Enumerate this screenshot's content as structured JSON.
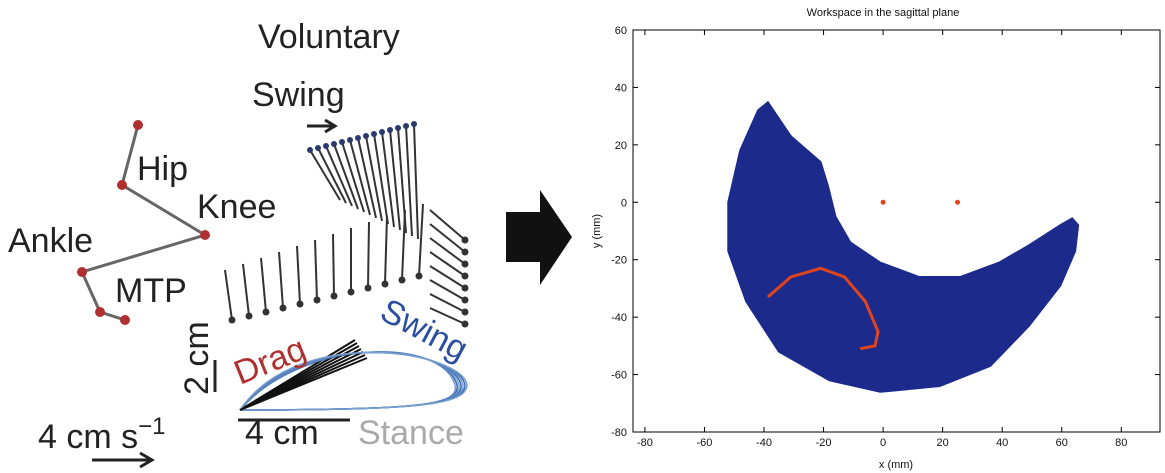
{
  "figure_labels": {
    "voluntary": "Voluntary",
    "swing_top": "Swing",
    "hip": "Hip",
    "knee": "Knee",
    "ankle": "Ankle",
    "mtp": "MTP",
    "vertical_scale": "2 cm",
    "drag": "Drag",
    "swing_bottom": "Swing",
    "horizontal_scale": "4 cm",
    "stance": "Stance",
    "speed_scale": "4 cm s",
    "speed_exponent": "−1"
  },
  "chart_data": {
    "type": "workspace",
    "title": "Workspace in the sagittal plane",
    "x_label": "x (mm)",
    "y_label": "y (mm)",
    "xlim": [
      -84,
      93
    ],
    "ylim": [
      -80,
      60
    ],
    "xticks": [
      -80,
      -60,
      -40,
      -20,
      0,
      20,
      40,
      60,
      80
    ],
    "yticks": [
      -80,
      -60,
      -40,
      -20,
      0,
      20,
      40,
      60
    ],
    "series": [
      {
        "type": "area",
        "color": "#1c2a8c",
        "x": [
          -38.7,
          -31,
          -21,
          -18.5,
          -16,
          -11,
          -1,
          12,
          26,
          39,
          49,
          59.5,
          63.5,
          65.5,
          64.5,
          59.5,
          49,
          36,
          19,
          -1,
          -18,
          -35,
          -46,
          -52,
          -52,
          -48,
          -42
        ],
        "y": [
          34.8,
          23,
          14,
          5.6,
          -5,
          -14,
          -21,
          -26,
          -26,
          -21,
          -15,
          -8,
          -5.6,
          -8,
          -17,
          -29,
          -43,
          -57,
          -64,
          -66,
          -62,
          -52,
          -34.5,
          -17,
          0,
          18,
          32
        ]
      },
      {
        "type": "line",
        "color": "#e0441c",
        "x": [
          -38.7,
          -31,
          -21,
          -13,
          -6,
          -1.7,
          -2.7,
          -7.7
        ],
        "y": [
          -33,
          -26,
          -23,
          -26,
          -34.5,
          -45,
          -50,
          -51
        ]
      },
      {
        "type": "scatter",
        "color": "#e0441c",
        "x": [
          0,
          25
        ],
        "y": [
          0,
          0
        ]
      }
    ]
  }
}
